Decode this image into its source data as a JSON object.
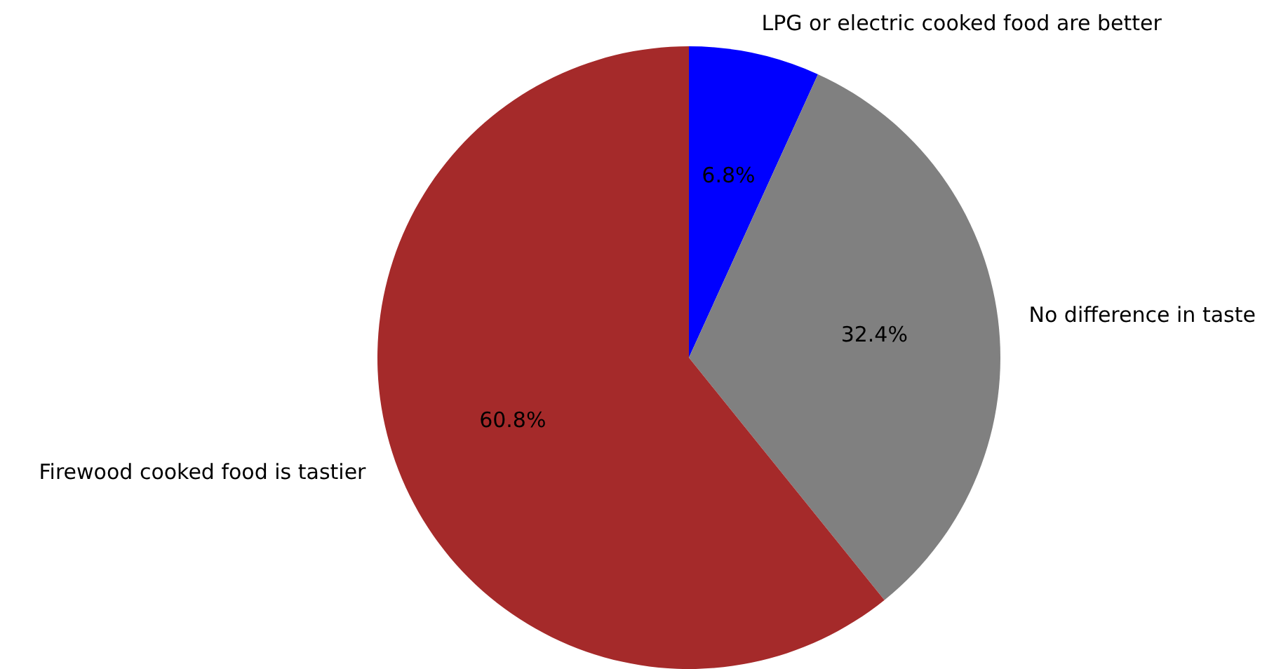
{
  "chart_data": {
    "type": "pie",
    "categories": [
      "LPG or electric cooked food are better",
      "No difference in taste",
      "Firewood cooked food is tastier"
    ],
    "values": [
      6.8,
      32.4,
      60.8
    ],
    "colors": [
      "#0000ff",
      "#808080",
      "#a52a2a"
    ],
    "value_labels": [
      "6.8%",
      "32.4%",
      "60.8%"
    ]
  }
}
